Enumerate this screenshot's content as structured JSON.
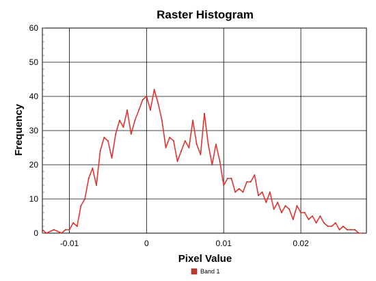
{
  "chart_data": {
    "type": "line",
    "title": "Raster Histogram",
    "xlabel": "Pixel Value",
    "ylabel": "Frequency",
    "xlim": [
      -0.0135,
      0.0285
    ],
    "ylim": [
      0,
      60
    ],
    "xticks": [
      -0.01,
      0,
      0.01,
      0.02
    ],
    "xtick_labels": [
      "-0.01",
      "0",
      "0.01",
      "0.02"
    ],
    "yticks": [
      0,
      10,
      20,
      30,
      40,
      50,
      60
    ],
    "ytick_labels": [
      "0",
      "10",
      "20",
      "30",
      "40",
      "50",
      "60"
    ],
    "grid": true,
    "legend": "bottom-center",
    "series": [
      {
        "name": "Band 1",
        "color": "#e8302f",
        "x": [
          -0.0135,
          -0.013,
          -0.012,
          -0.011,
          -0.0105,
          -0.01,
          -0.0095,
          -0.009,
          -0.0085,
          -0.008,
          -0.0075,
          -0.007,
          -0.0065,
          -0.006,
          -0.0055,
          -0.005,
          -0.0045,
          -0.004,
          -0.0035,
          -0.003,
          -0.0025,
          -0.002,
          -0.0015,
          -0.001,
          -0.0005,
          0,
          0.0005,
          0.001,
          0.0015,
          0.002,
          0.0025,
          0.003,
          0.0035,
          0.004,
          0.0045,
          0.005,
          0.0055,
          0.006,
          0.0065,
          0.007,
          0.0075,
          0.008,
          0.0085,
          0.009,
          0.0095,
          0.01,
          0.0105,
          0.011,
          0.0115,
          0.012,
          0.0125,
          0.013,
          0.0135,
          0.014,
          0.0145,
          0.015,
          0.0155,
          0.016,
          0.0165,
          0.017,
          0.0175,
          0.018,
          0.0185,
          0.019,
          0.0195,
          0.02,
          0.0205,
          0.021,
          0.0215,
          0.022,
          0.0225,
          0.023,
          0.0235,
          0.024,
          0.0245,
          0.025,
          0.0255,
          0.026,
          0.0265,
          0.027,
          0.0275,
          0.028
        ],
        "values": [
          1,
          0,
          1,
          0,
          1,
          1,
          3,
          2,
          8,
          10,
          16,
          19,
          14,
          24,
          28,
          27,
          22,
          29,
          33,
          31,
          36,
          29,
          33,
          36,
          39,
          40,
          36,
          42,
          38,
          33,
          25,
          28,
          27,
          21,
          24,
          27,
          25,
          33,
          26,
          23,
          35,
          26,
          20,
          26,
          21,
          14,
          16,
          16,
          12,
          13,
          12,
          15,
          15,
          17,
          11,
          12,
          9,
          12,
          7,
          9,
          6,
          8,
          7,
          4,
          8,
          6,
          6,
          4,
          5,
          3,
          5,
          3,
          2,
          2,
          3,
          1,
          2,
          1,
          1,
          1,
          0,
          0
        ]
      }
    ]
  }
}
